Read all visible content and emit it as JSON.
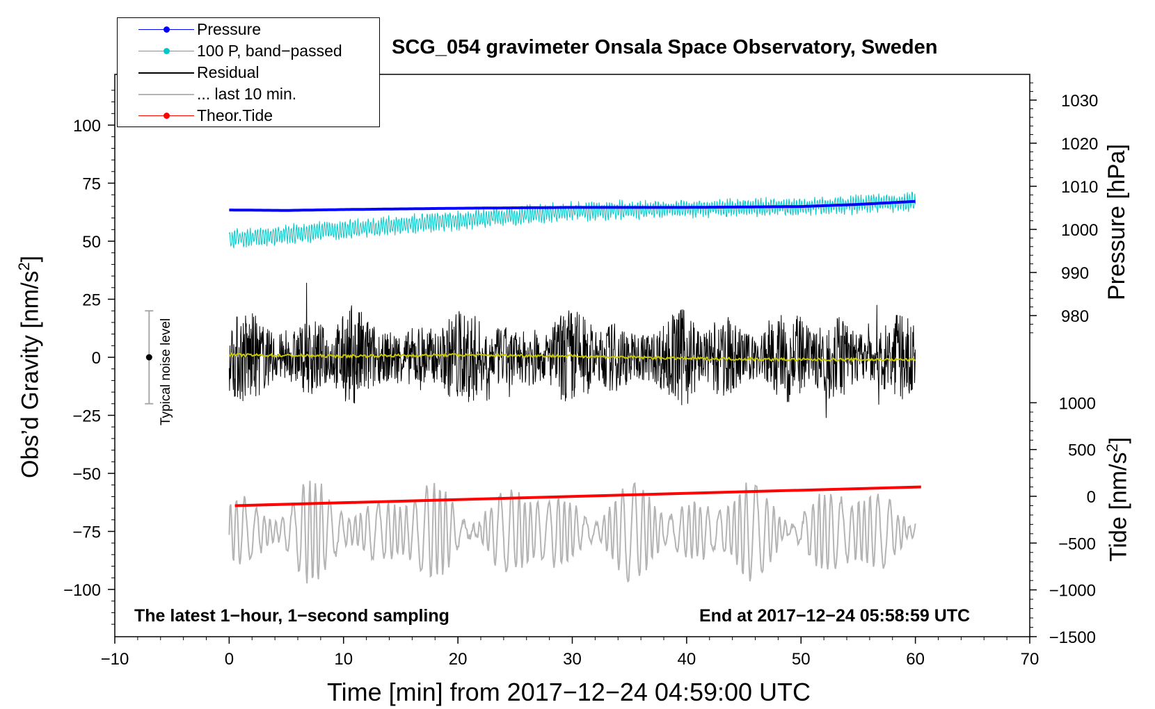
{
  "title": "SCG_054 gravimeter Onsala Space Observatory, Sweden",
  "note_left": "The latest 1−hour, 1−second sampling",
  "note_right": "End at 2017−12−24 05:58:59 UTC",
  "noise_label": "Typical noise level",
  "legend": [
    {
      "label": "Pressure",
      "color": "#0000ff",
      "marker": true
    },
    {
      "label": "100 P, band−passed",
      "color": "#00c8c8",
      "marker": true
    },
    {
      "label": "Residual",
      "color": "#000000",
      "marker": false
    },
    {
      "label": "... last 10 min.",
      "color": "#b4b4b4",
      "marker": false
    },
    {
      "label": "Theor.Tide",
      "color": "#ff0000",
      "marker": true
    }
  ],
  "chart_data": {
    "type": "line",
    "xlabel": "Time [min] from 2017−12−24 04:59:00 UTC",
    "xlim": [
      -10,
      70
    ],
    "xticks": [
      -10,
      0,
      10,
      20,
      30,
      40,
      50,
      60,
      70
    ],
    "xtick_labels": [
      "−10",
      "0",
      "10",
      "20",
      "30",
      "40",
      "50",
      "60",
      "70"
    ],
    "left_axis": {
      "label_main": "Obs’d Gravity [nm/s",
      "label_sup": "2",
      "label_end": "]",
      "ylim": [
        -120,
        120
      ],
      "ticks": [
        100,
        75,
        50,
        25,
        0,
        -25,
        -50,
        -75,
        -100
      ],
      "tick_labels": [
        "100",
        "75",
        "50",
        "25",
        "0",
        "−25",
        "−50",
        "−75",
        "−100"
      ]
    },
    "right_pressure_axis": {
      "label": "Pressure [hPa]",
      "ticks": [
        1030,
        1020,
        1010,
        1000,
        990,
        980
      ],
      "tick_labels": [
        "1030",
        "1020",
        "1010",
        "1000",
        "990",
        "980"
      ]
    },
    "right_tide_axis": {
      "label_main": "Tide [nm/s",
      "label_sup": "2",
      "label_end": "]",
      "ticks": [
        1000,
        500,
        0,
        -500,
        -1000,
        -1500
      ],
      "tick_labels": [
        "1000",
        "500",
        "0",
        "−500",
        "−1000",
        "−1500"
      ]
    },
    "noise_bar": {
      "x": -7,
      "center": 0,
      "half_range": 20
    },
    "series": [
      {
        "name": "Pressure",
        "axis": "pressure",
        "color": "#0000ff",
        "x": [
          0,
          5,
          10,
          20,
          30,
          40,
          50,
          55,
          60
        ],
        "y": [
          1004.5,
          1004.4,
          1004.6,
          1004.9,
          1005.1,
          1005.1,
          1005.3,
          1005.8,
          1006.5
        ]
      },
      {
        "name": "100 P, band−passed",
        "axis": "left",
        "color": "#00c8c8",
        "x": [
          0,
          10,
          20,
          30,
          40,
          50,
          60
        ],
        "y": [
          51,
          55,
          59,
          63,
          64,
          65,
          67
        ],
        "amplitude": 4
      },
      {
        "name": "Residual",
        "axis": "left",
        "color": "#000000",
        "x": [
          0,
          60
        ],
        "y": [
          0,
          0
        ],
        "amplitude": 22
      },
      {
        "name": "Residual mean",
        "axis": "left",
        "color": "#c8c800",
        "x": [
          0,
          10,
          20,
          30,
          40,
          50,
          60
        ],
        "y": [
          1,
          0.5,
          1,
          0.5,
          -0.5,
          -1,
          -1
        ]
      },
      {
        "name": "... last 10 min.",
        "axis": "left",
        "color": "#b4b4b4",
        "x": [
          0,
          60
        ],
        "y": [
          -75,
          -75
        ],
        "amplitude": 22
      },
      {
        "name": "Theor.Tide",
        "axis": "tide",
        "color": "#ff0000",
        "x": [
          0.5,
          60.5
        ],
        "y": [
          -100,
          100
        ]
      }
    ]
  }
}
